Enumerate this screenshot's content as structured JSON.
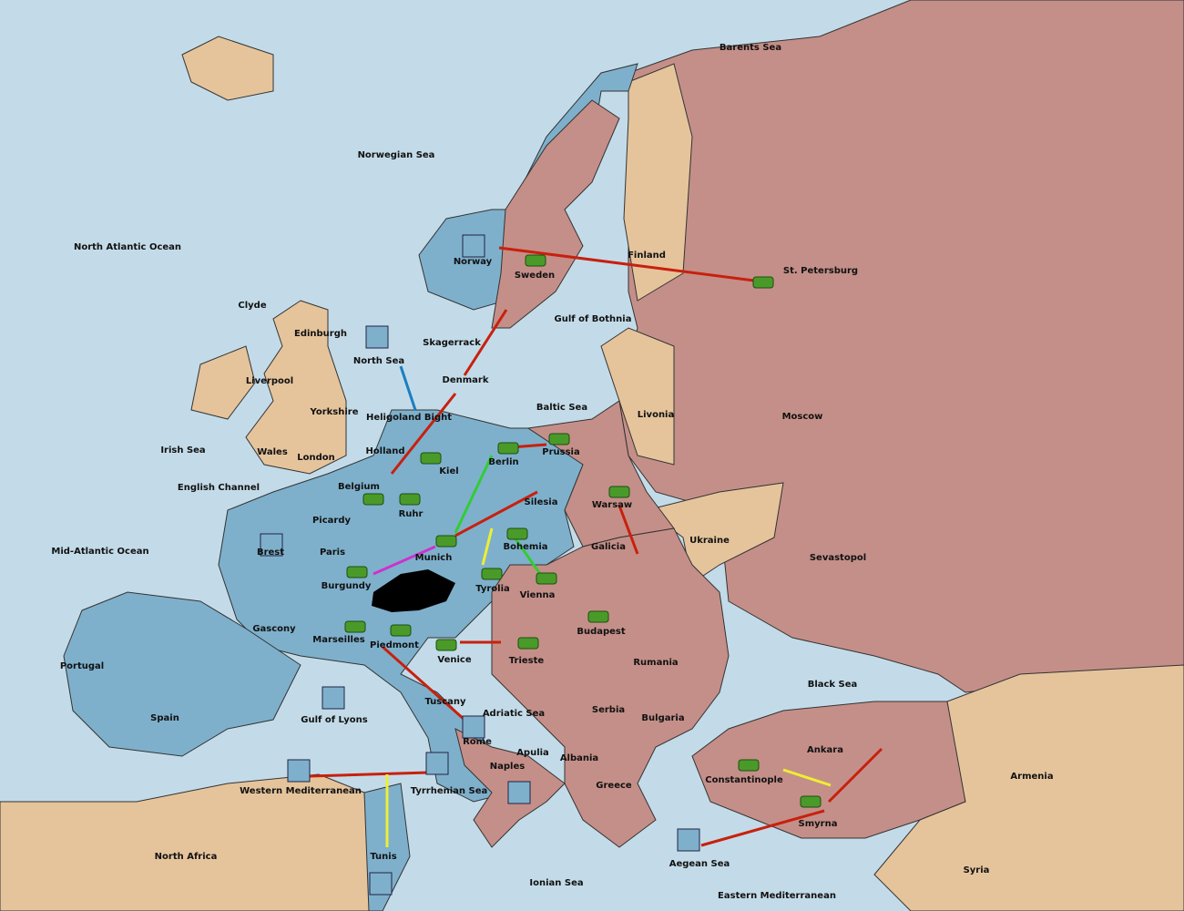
{
  "regions": [
    "Barents Sea",
    "Norwegian Sea",
    "North Atlantic Ocean",
    "Finland",
    "St. Petersburg",
    "Norway",
    "Sweden",
    "Clyde",
    "Gulf of Bothnia",
    "Edinburgh",
    "North Sea",
    "Skagerrack",
    "Liverpool",
    "Denmark",
    "Yorkshire",
    "Heligoland Bight",
    "Baltic Sea",
    "Livonia",
    "Moscow",
    "Irish Sea",
    "Wales",
    "London",
    "Holland",
    "Prussia",
    "Berlin",
    "Kiel",
    "English Channel",
    "Belgium",
    "Silesia",
    "Warsaw",
    "Ruhr",
    "Picardy",
    "Ukraine",
    "Mid-Atlantic Ocean",
    "Brest",
    "Paris",
    "Munich",
    "Bohemia",
    "Galicia",
    "Sevastopol",
    "Burgundy",
    "Tyrolia",
    "Vienna",
    "Budapest",
    "Gascony",
    "Marseilles",
    "Piedmont",
    "Venice",
    "Trieste",
    "Rumania",
    "Portugal",
    "Black Sea",
    "Spain",
    "Gulf of Lyons",
    "Tuscany",
    "Adriatic Sea",
    "Serbia",
    "Bulgaria",
    "Rome",
    "Apulia",
    "Albania",
    "Ankara",
    "Armenia",
    "Naples",
    "Constantinople",
    "Greece",
    "Western Mediterranean",
    "Tyrrhenian Sea",
    "Smyrna",
    "North Africa",
    "Tunis",
    "Aegean Sea",
    "Syria",
    "Ionian Sea",
    "Eastern Mediterranean"
  ]
}
